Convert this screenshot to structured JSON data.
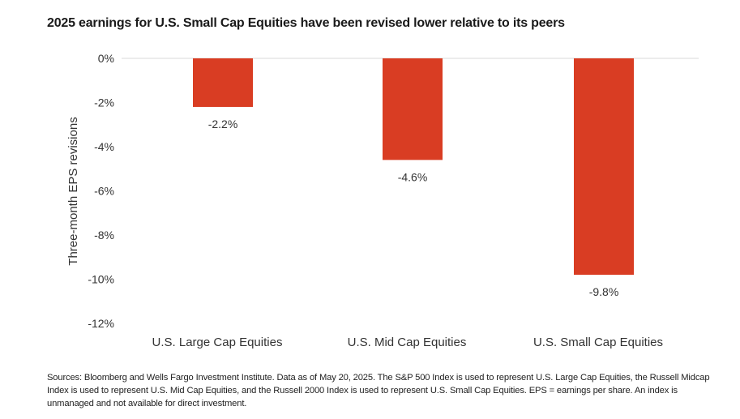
{
  "title": "2025 earnings for U.S. Small Cap Equities have been revised lower relative to its peers",
  "footnote": "Sources: Bloomberg and Wells Fargo Investment Institute. Data as of May 20, 2025. The S&P 500 Index is used to represent U.S. Large Cap Equities, the Russell Midcap Index is used to represent U.S. Mid Cap Equities, and the Russell 2000 Index is used to represent U.S. Small Cap Equities. EPS = earnings per share. An index is unmanaged and not available for direct investment.",
  "colors": {
    "bar": "#d93d23",
    "gridline": "#d9d9d9",
    "text": "#333333"
  },
  "chart_data": {
    "type": "bar",
    "title": "2025 earnings for U.S. Small Cap Equities have been revised lower relative to its peers",
    "xlabel": "",
    "ylabel": "Three-month EPS revisions",
    "categories": [
      "U.S. Large Cap Equities",
      "U.S. Mid Cap Equities",
      "U.S. Small Cap Equities"
    ],
    "values": [
      -2.2,
      -4.6,
      -9.8
    ],
    "data_labels": [
      "-2.2%",
      "-4.6%",
      "-9.8%"
    ],
    "ylim": [
      -12,
      0
    ],
    "yticks": [
      0,
      -2,
      -4,
      -6,
      -8,
      -10,
      -12
    ],
    "ytick_labels": [
      "0%",
      "-2%",
      "-4%",
      "-6%",
      "-8%",
      "-10%",
      "-12%"
    ],
    "grid": "zero line only",
    "legend": "none"
  }
}
